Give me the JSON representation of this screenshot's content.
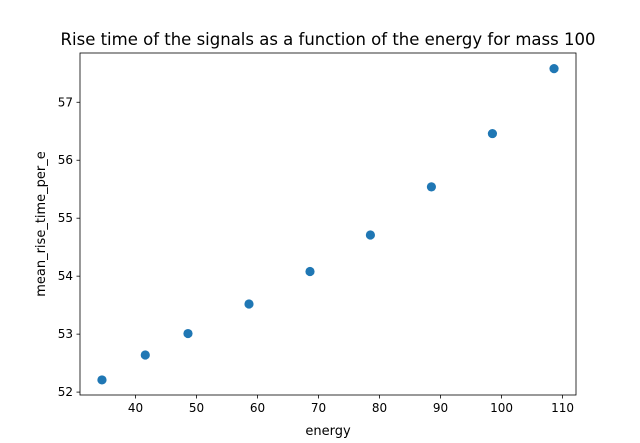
{
  "chart_data": {
    "type": "scatter",
    "title": "Rise time of the signals as a function of the energy for mass 100",
    "xlabel": "energy",
    "ylabel": "mean_rise_time_per_e",
    "xlim": [
      30.9,
      112.2
    ],
    "ylim": [
      51.95,
      57.85
    ],
    "xticks": [
      40,
      50,
      60,
      70,
      80,
      90,
      100,
      110
    ],
    "yticks": [
      52,
      53,
      54,
      55,
      56,
      57
    ],
    "grid": false,
    "legend": "none",
    "marker_color": "#1f77b4",
    "points": [
      {
        "x": 34.5,
        "y": 52.21
      },
      {
        "x": 41.6,
        "y": 52.64
      },
      {
        "x": 48.6,
        "y": 53.01
      },
      {
        "x": 58.6,
        "y": 53.52
      },
      {
        "x": 68.6,
        "y": 54.08
      },
      {
        "x": 78.5,
        "y": 54.71
      },
      {
        "x": 88.5,
        "y": 55.54
      },
      {
        "x": 98.5,
        "y": 56.46
      },
      {
        "x": 108.6,
        "y": 57.58
      }
    ]
  }
}
